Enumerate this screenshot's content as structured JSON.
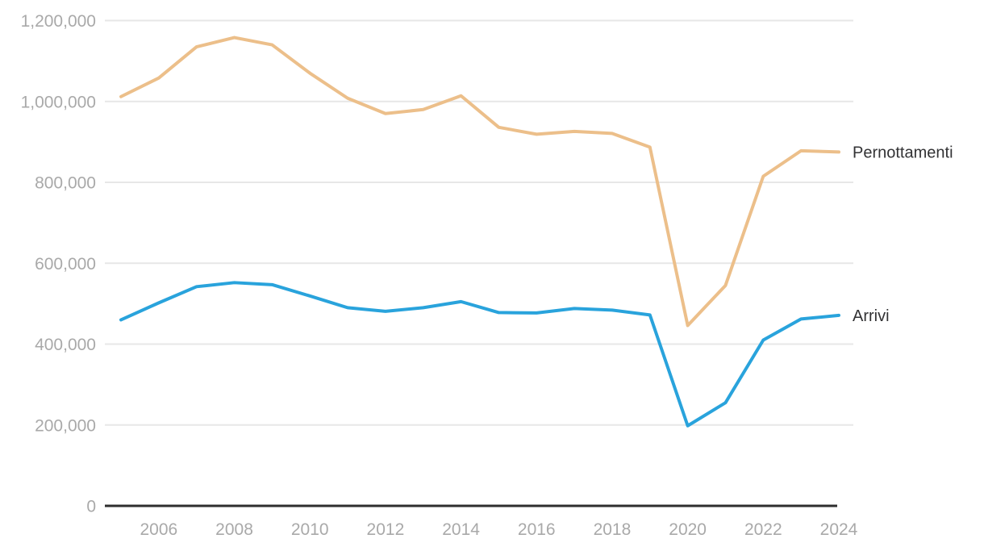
{
  "chart_data": {
    "type": "line",
    "title": "",
    "xlabel": "",
    "ylabel": "",
    "x": [
      2005,
      2006,
      2007,
      2008,
      2009,
      2010,
      2011,
      2012,
      2013,
      2014,
      2015,
      2016,
      2017,
      2018,
      2019,
      2020,
      2021,
      2022,
      2023,
      2024
    ],
    "series": [
      {
        "name": "Pernottamenti",
        "color": "#ecbf8a",
        "values": [
          1012000,
          1058000,
          1135000,
          1158000,
          1140000,
          1070000,
          1008000,
          970000,
          980000,
          1014000,
          936000,
          919000,
          926000,
          921000,
          887000,
          446000,
          545000,
          815000,
          878000,
          875000
        ]
      },
      {
        "name": "Arrivi",
        "color": "#29a3dc",
        "values": [
          460000,
          502000,
          542000,
          552000,
          547000,
          519000,
          490000,
          481000,
          490000,
          505000,
          478000,
          477000,
          488000,
          484000,
          472000,
          198000,
          255000,
          410000,
          462000,
          471000
        ]
      }
    ],
    "ylim": [
      0,
      1200000
    ],
    "y_ticks": [
      0,
      200000,
      400000,
      600000,
      800000,
      1000000,
      1200000
    ],
    "y_tick_labels": [
      "0",
      "200,000",
      "400,000",
      "600,000",
      "800,000",
      "1,000,000",
      "1,200,000"
    ],
    "x_tick_labels": [
      "2006",
      "2008",
      "2010",
      "2012",
      "2014",
      "2016",
      "2018",
      "2020",
      "2022",
      "2024"
    ],
    "grid": "horizontal",
    "legend_position": "right-of-line-ends",
    "colors": {
      "grid_line": "#e7e7e7",
      "axis_line": "#2e2e2e",
      "tick_text": "#a9a9a9",
      "label_text": "#323234",
      "background": "#ffffff"
    }
  }
}
